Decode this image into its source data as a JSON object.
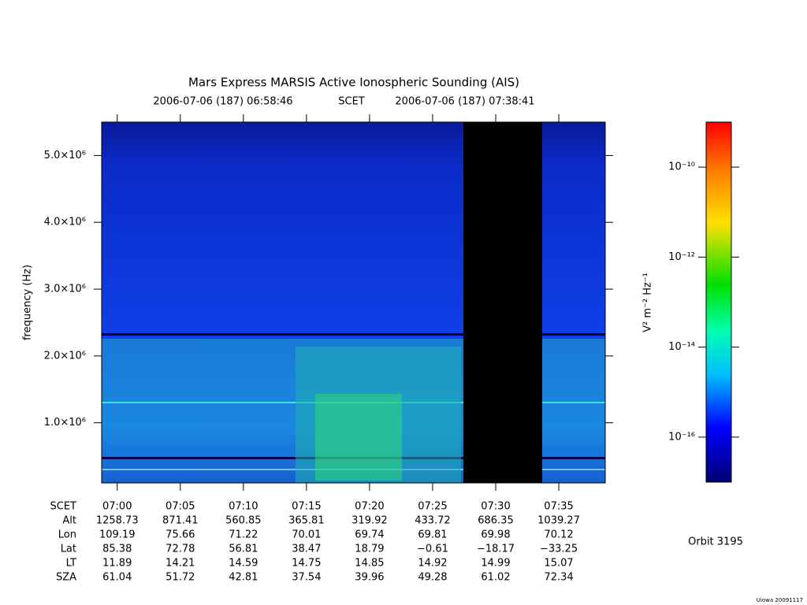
{
  "chart_data": {
    "type": "spectrogram",
    "title": "Mars Express MARSIS Active Ionospheric Sounding (AIS)",
    "start_time": "2006-07-06 (187) 06:58:46",
    "time_system": "SCET",
    "end_time": "2006-07-06 (187) 07:38:41",
    "ylabel": "frequency (Hz)",
    "ylim": [
      100000,
      5500000
    ],
    "yticks": [
      {
        "value": 1000000,
        "label": "1.0×10⁶"
      },
      {
        "value": 2000000,
        "label": "2.0×10⁶"
      },
      {
        "value": 3000000,
        "label": "3.0×10⁶"
      },
      {
        "value": 4000000,
        "label": "4.0×10⁶"
      },
      {
        "value": 5000000,
        "label": "5.0×10⁶"
      }
    ],
    "xlim": [
      418.767,
      458.683
    ],
    "xticks": [
      {
        "value": 420,
        "label": "07:00"
      },
      {
        "value": 425,
        "label": "07:05"
      },
      {
        "value": 430,
        "label": "07:10"
      },
      {
        "value": 435,
        "label": "07:15"
      },
      {
        "value": 440,
        "label": "07:20"
      },
      {
        "value": 445,
        "label": "07:25"
      },
      {
        "value": 450,
        "label": "07:30"
      },
      {
        "value": 455,
        "label": "07:35"
      }
    ],
    "ephemeris": {
      "labels": [
        "SCET",
        "Alt",
        "Lon",
        "Lat",
        "LT",
        "SZA"
      ],
      "rows": [
        [
          "1258.73",
          "871.41",
          "560.85",
          "365.81",
          "319.92",
          "433.72",
          "686.35",
          "1039.27"
        ],
        [
          "109.19",
          "75.66",
          "71.22",
          "70.01",
          "69.74",
          "69.81",
          "69.98",
          "70.12"
        ],
        [
          "85.38",
          "72.78",
          "56.81",
          "38.47",
          "18.79",
          "−0.61",
          "−18.17",
          "−33.25"
        ],
        [
          "11.89",
          "14.21",
          "14.59",
          "14.75",
          "14.85",
          "14.92",
          "14.99",
          "15.07"
        ],
        [
          "61.04",
          "51.72",
          "42.81",
          "37.54",
          "39.96",
          "49.28",
          "61.02",
          "72.34"
        ]
      ]
    },
    "colorbar": {
      "label": "V² m⁻² Hz⁻¹",
      "log_scale": true,
      "zlim": [
        1e-17,
        1e-09
      ],
      "zticks": [
        {
          "value": 1e-16,
          "label": "10⁻¹⁶"
        },
        {
          "value": 1e-14,
          "label": "10⁻¹⁴"
        },
        {
          "value": 1e-12,
          "label": "10⁻¹²"
        },
        {
          "value": 1e-10,
          "label": "10⁻¹⁰"
        }
      ]
    },
    "orbit": "Orbit 3195",
    "footer": "Uiowa 20091117"
  }
}
